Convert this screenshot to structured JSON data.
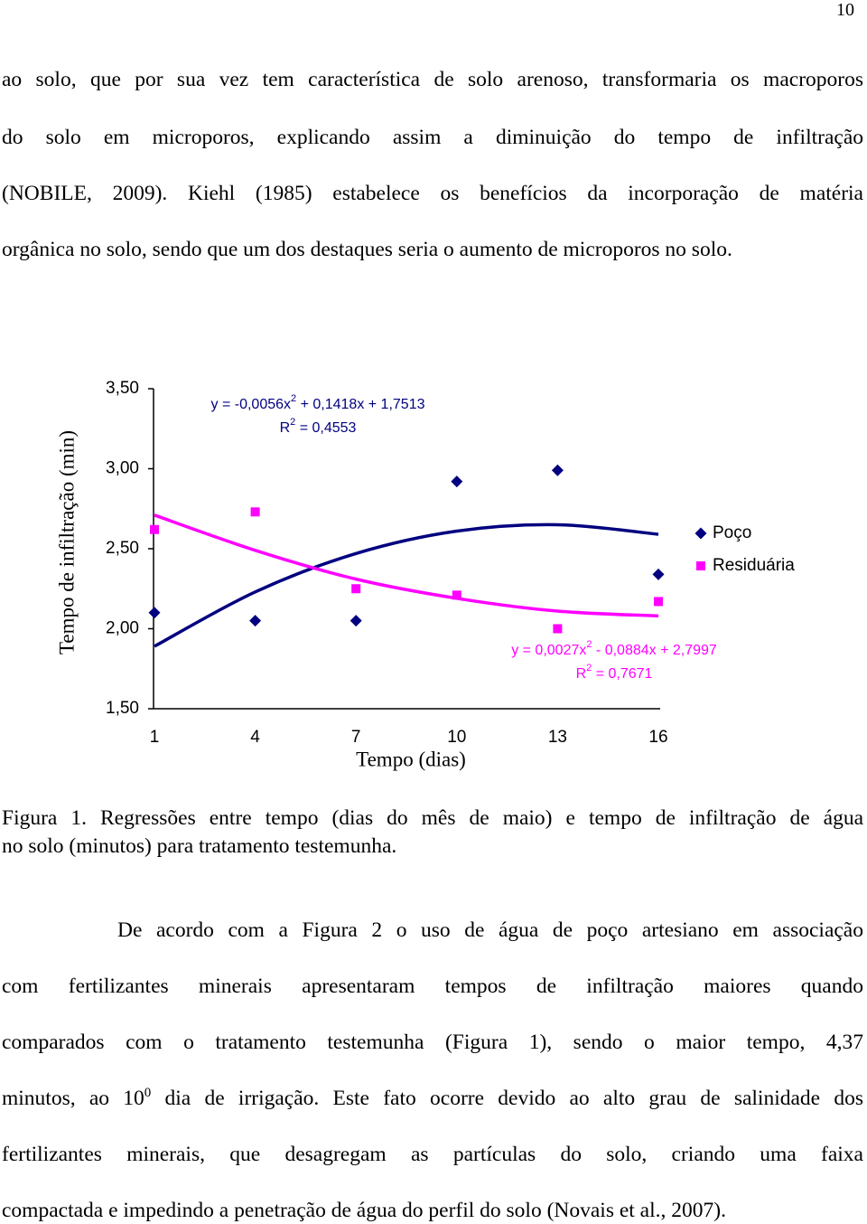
{
  "page_number": "10",
  "paragraph_1": {
    "lines": [
      "ao solo, que por sua vez tem característica de solo arenoso, transformaria os macroporos",
      "do solo em microporos, explicando assim a diminuição do tempo de infiltração",
      "(NOBILE, 2009). Kiehl (1985) estabelece os benefícios da incorporação de matéria",
      "orgânica no solo, sendo que um dos destaques seria o aumento de microporos no solo."
    ]
  },
  "chart_data": {
    "type": "scatter",
    "y_label": "Tempo de infiltração (min)",
    "x_label": "Tempo (dias)",
    "x": [
      1,
      4,
      7,
      10,
      13,
      16
    ],
    "xlim": [
      1,
      16
    ],
    "xticks": [
      1,
      4,
      7,
      10,
      13,
      16
    ],
    "ylim": [
      1.5,
      3.5
    ],
    "yticks": [
      {
        "value": 1.5,
        "label": "1,50"
      },
      {
        "value": 2,
        "label": "2,00"
      },
      {
        "value": 2.5,
        "label": "2,50"
      },
      {
        "value": 3,
        "label": "3,00"
      },
      {
        "value": 3.5,
        "label": "3,50"
      }
    ],
    "legend": "right",
    "series": [
      {
        "name": "Poço",
        "color": "#000080",
        "marker": "diamond",
        "values": [
          2.1,
          2.05,
          2.05,
          2.92,
          2.99,
          2.34
        ],
        "trendline": [
          1.89,
          2.23,
          2.47,
          2.61,
          2.65,
          2.59
        ]
      },
      {
        "name": "Residuária",
        "color": "#ff00ff",
        "marker": "square",
        "values": [
          2.62,
          2.73,
          2.25,
          2.21,
          2.0,
          2.17
        ],
        "trendline": [
          2.71,
          2.49,
          2.31,
          2.19,
          2.11,
          2.08
        ]
      }
    ],
    "annotations": [
      {
        "line1": [
          "y = -0,0056x",
          "2",
          " + 0,1418x + 1,7513"
        ],
        "line2": [
          "R",
          "2",
          " = 0,4553"
        ]
      },
      {
        "line1": [
          "y = 0,0027x",
          "2",
          " - 0,0884x + 2,7997"
        ],
        "line2": [
          "R",
          "2",
          " = 0,7671"
        ]
      }
    ]
  },
  "caption": {
    "lines": [
      "Figura 1. Regressões entre tempo (dias do mês de maio) e tempo de infiltração de água",
      "no solo (minutos) para tratamento testemunha."
    ]
  },
  "paragraph_2": {
    "lines": [
      "De acordo com a Figura 2 o uso de água de poço artesiano em associação",
      "com fertilizantes minerais apresentaram tempos de infiltração maiores quando",
      "comparados com o tratamento testemunha (Figura 1), sendo o maior tempo, 4,37",
      [
        "minutos, ao 10",
        "0",
        " dia de irrigação. Este fato ocorre devido ao alto grau de salinidade dos"
      ],
      "fertilizantes minerais, que desagregam as partículas do solo, criando uma faixa",
      "compactada e impedindo a penetração de água do perfil do solo (Novais et al., 2007)."
    ]
  }
}
